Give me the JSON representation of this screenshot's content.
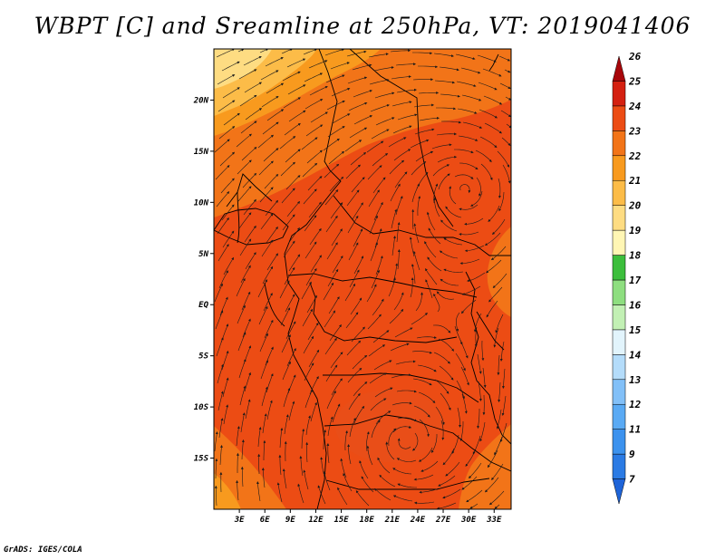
{
  "title": "WBPT [C] and Sreamline at 250hPa, VT: 2019041406",
  "credit": "GrADS: IGES/COLA",
  "map": {
    "lon_range": [
      0,
      35
    ],
    "lat_range": [
      -20,
      25
    ],
    "lat_ticks": [
      {
        "label": "20N",
        "lat": 20
      },
      {
        "label": "15N",
        "lat": 15
      },
      {
        "label": "10N",
        "lat": 10
      },
      {
        "label": "5N",
        "lat": 5
      },
      {
        "label": "EQ",
        "lat": 0
      },
      {
        "label": "5S",
        "lat": -5
      },
      {
        "label": "10S",
        "lat": -10
      },
      {
        "label": "15S",
        "lat": -15
      }
    ],
    "lon_ticks": [
      {
        "label": "3E",
        "lon": 3
      },
      {
        "label": "6E",
        "lon": 6
      },
      {
        "label": "9E",
        "lon": 9
      },
      {
        "label": "12E",
        "lon": 12
      },
      {
        "label": "15E",
        "lon": 15
      },
      {
        "label": "18E",
        "lon": 18
      },
      {
        "label": "21E",
        "lon": 21
      },
      {
        "label": "24E",
        "lon": 24
      },
      {
        "label": "27E",
        "lon": 27
      },
      {
        "label": "30E",
        "lon": 30
      },
      {
        "label": "33E",
        "lon": 33
      }
    ],
    "cyclonic_centers": [
      {
        "lon": 29.5,
        "lat": 11.5
      },
      {
        "lon": 22.5,
        "lat": -13.5
      }
    ]
  },
  "colorbar": {
    "levels": [
      {
        "label": "7",
        "color": "#1e64d8"
      },
      {
        "label": "9",
        "color": "#2b7be4"
      },
      {
        "label": "11",
        "color": "#3c92ee"
      },
      {
        "label": "12",
        "color": "#5aaaf4"
      },
      {
        "label": "13",
        "color": "#82c0f8"
      },
      {
        "label": "14",
        "color": "#b4dcfa"
      },
      {
        "label": "15",
        "color": "#e2f4fc"
      },
      {
        "label": "16",
        "color": "#c2f0b4"
      },
      {
        "label": "17",
        "color": "#8ede80"
      },
      {
        "label": "18",
        "color": "#3cbe3c"
      },
      {
        "label": "19",
        "color": "#fff6b4"
      },
      {
        "label": "20",
        "color": "#fedc82"
      },
      {
        "label": "21",
        "color": "#fcbc48"
      },
      {
        "label": "22",
        "color": "#f89a1e"
      },
      {
        "label": "23",
        "color": "#f27418"
      },
      {
        "label": "24",
        "color": "#ec4c14"
      },
      {
        "label": "25",
        "color": "#d42010"
      },
      {
        "label": "26",
        "color": "#a8060a"
      }
    ]
  }
}
